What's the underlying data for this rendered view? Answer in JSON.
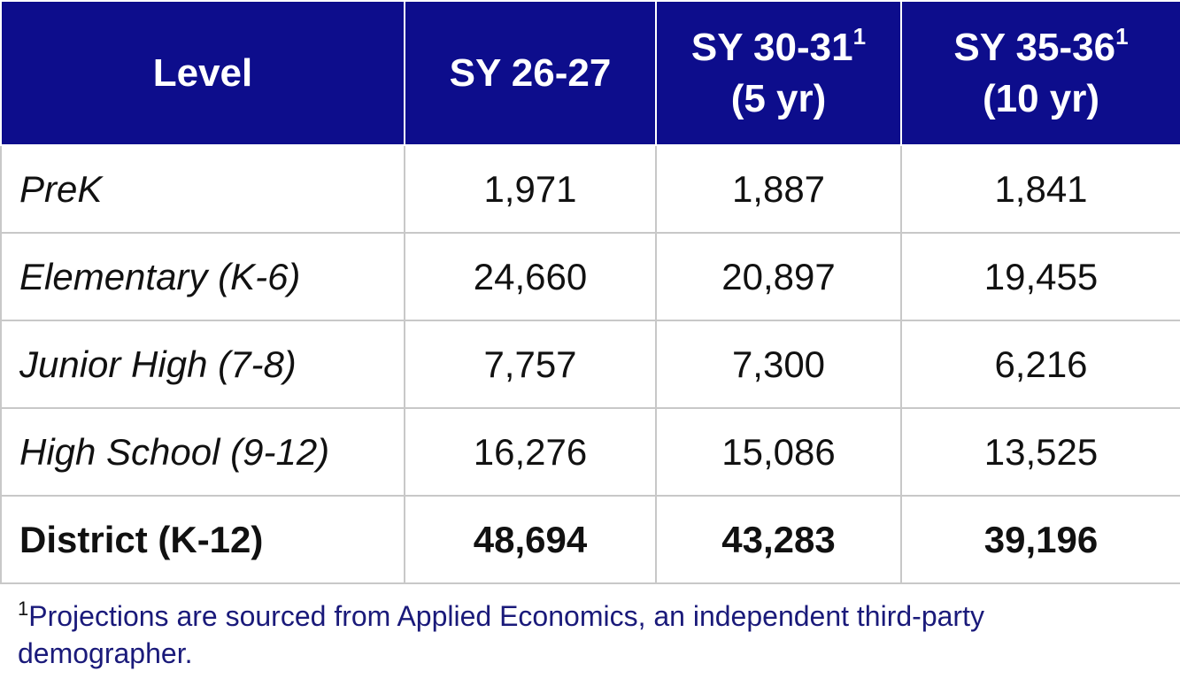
{
  "table": {
    "header": [
      {
        "label": "Level"
      },
      {
        "label": "SY 26-27"
      },
      {
        "label": "SY 30-31",
        "note": "1",
        "sub": "(5 yr)"
      },
      {
        "label": "SY 35-36",
        "note": "1",
        "sub": "(10 yr)"
      }
    ],
    "rows": [
      [
        "PreK",
        "1,971",
        "1,887",
        "1,841"
      ],
      [
        "Elementary (K-6)",
        "24,660",
        "20,897",
        "19,455"
      ],
      [
        "Junior High (7-8)",
        "7,757",
        "7,300",
        "6,216"
      ],
      [
        "High School (9-12)",
        "16,276",
        "15,086",
        "13,525"
      ]
    ],
    "total": [
      "District (K-12)",
      "48,694",
      "43,283",
      "39,196"
    ]
  },
  "footnote": {
    "marker": "1",
    "text": "Projections are sourced from Applied Economics, an independent third-party demographer."
  }
}
